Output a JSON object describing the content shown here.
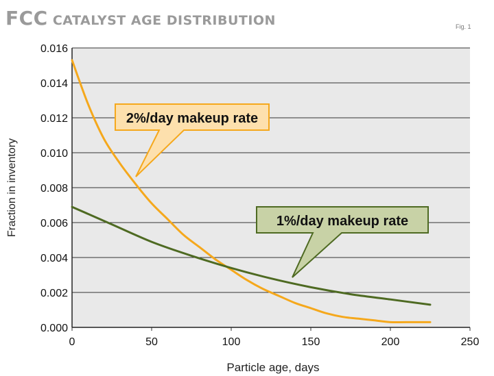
{
  "header": {
    "title_prefix": "FCC",
    "title_rest": " CATALYST AGE DISTRIBUTION",
    "fig_label": "Fig. 1"
  },
  "chart_data": {
    "type": "line",
    "xlabel": "Particle age, days",
    "ylabel": "Fraction in inventory",
    "xlim": [
      0,
      250
    ],
    "ylim": [
      0,
      0.016
    ],
    "xticks": [
      "0",
      "50",
      "100",
      "150",
      "200",
      "250"
    ],
    "yticks": [
      "0.000",
      "0.002",
      "0.004",
      "0.006",
      "0.008",
      "0.010",
      "0.012",
      "0.014",
      "0.016"
    ],
    "grid": "horizontal",
    "series": [
      {
        "name": "2%/day makeup rate",
        "color": "#f5a81c",
        "x": [
          0,
          10,
          20,
          30,
          40,
          50,
          60,
          70,
          80,
          90,
          100,
          110,
          120,
          130,
          140,
          150,
          160,
          170,
          180,
          190,
          200,
          210,
          225
        ],
        "y": [
          0.0153,
          0.0128,
          0.0108,
          0.0094,
          0.0082,
          0.0071,
          0.0062,
          0.0053,
          0.0046,
          0.0039,
          0.0033,
          0.0027,
          0.0022,
          0.0018,
          0.0014,
          0.0011,
          0.0008,
          0.0006,
          0.0005,
          0.0004,
          0.0003,
          0.0003,
          0.0003
        ]
      },
      {
        "name": "1%/day makeup rate",
        "color": "#4e6a22",
        "x": [
          0,
          25,
          50,
          75,
          100,
          125,
          150,
          175,
          200,
          225
        ],
        "y": [
          0.0069,
          0.0059,
          0.0049,
          0.0041,
          0.0034,
          0.0028,
          0.0023,
          0.0019,
          0.0016,
          0.0013
        ]
      }
    ],
    "annotations": [
      {
        "text": "2%/day makeup rate",
        "series": 0,
        "fill": "#fde0ad",
        "border": "#f5a81c"
      },
      {
        "text": "1%/day makeup rate",
        "series": 1,
        "fill": "#c8d2a6",
        "border": "#4e6a22"
      }
    ]
  }
}
